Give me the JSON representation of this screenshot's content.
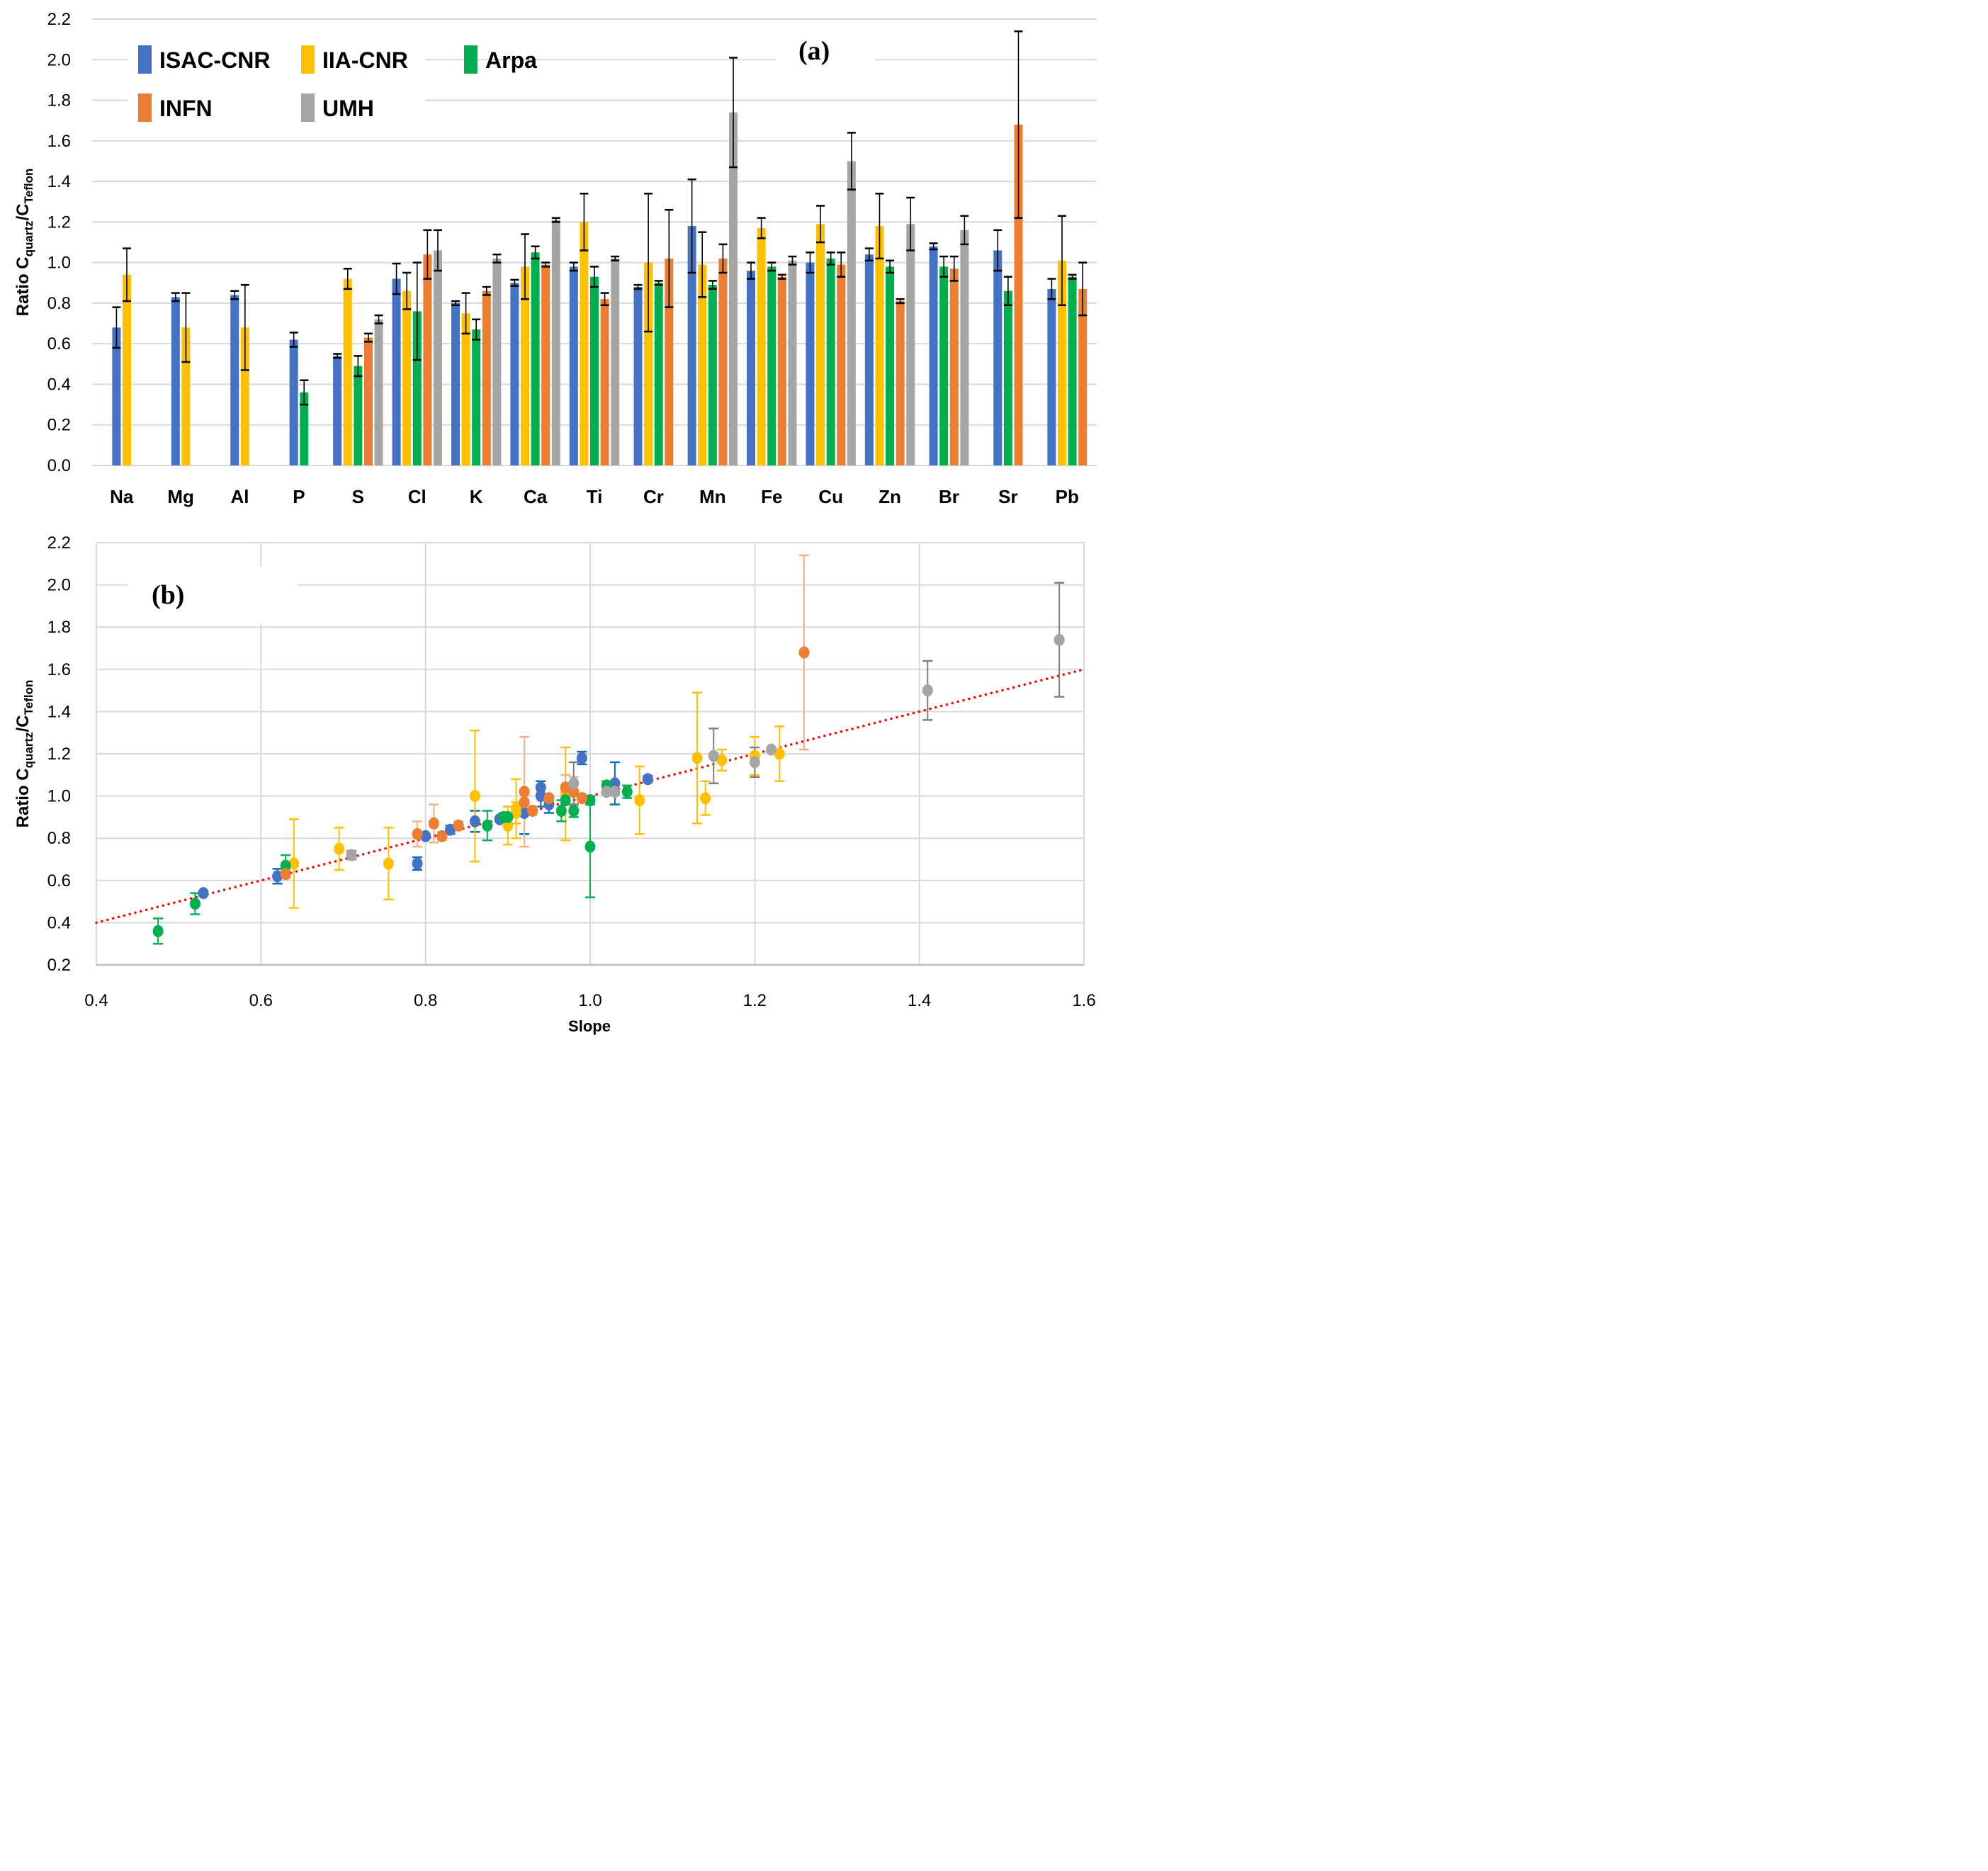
{
  "chart_data": [
    {
      "id": "panel-a",
      "type": "bar",
      "panel_label": "(a)",
      "title": "",
      "ylabel": "Ratio C",
      "ylabel_sub1": "quartz",
      "ylabel_mid": "/C",
      "ylabel_sub2": "Teflon",
      "xlabel": "",
      "ylim": [
        0,
        2.2
      ],
      "yticks": [
        0.0,
        0.2,
        0.4,
        0.6,
        0.8,
        1.0,
        1.2,
        1.4,
        1.6,
        1.8,
        2.0,
        2.2
      ],
      "ytick_labels": [
        "0.0",
        "0.2",
        "0.4",
        "0.6",
        "0.8",
        "1.0",
        "1.2",
        "1.4",
        "1.6",
        "1.8",
        "2.0",
        "2.2"
      ],
      "grid": true,
      "legend_position": "top-left",
      "categories": [
        "Na",
        "Mg",
        "Al",
        "P",
        "S",
        "Cl",
        "K",
        "Ca",
        "Ti",
        "Cr",
        "Mn",
        "Fe",
        "Cu",
        "Zn",
        "Br",
        "Sr",
        "Pb"
      ],
      "series": [
        {
          "name": "ISAC-CNR",
          "color": "#4472C4",
          "values": [
            0.68,
            0.83,
            0.84,
            0.62,
            0.54,
            0.92,
            0.8,
            0.9,
            0.98,
            0.88,
            1.18,
            0.96,
            1.0,
            1.04,
            1.08,
            1.06,
            0.87
          ],
          "errors": [
            0.1,
            0.02,
            0.02,
            0.035,
            0.01,
            0.075,
            0.01,
            0.015,
            0.02,
            0.01,
            0.23,
            0.04,
            0.05,
            0.03,
            0.015,
            0.1,
            0.05
          ]
        },
        {
          "name": "IIA-CNR",
          "color": "#FFC000",
          "values": [
            0.94,
            0.68,
            0.68,
            null,
            0.92,
            0.86,
            0.75,
            0.98,
            1.2,
            1.0,
            0.99,
            1.17,
            1.19,
            1.18,
            null,
            null,
            1.01
          ],
          "errors": [
            0.13,
            0.17,
            0.21,
            null,
            0.05,
            0.09,
            0.1,
            0.16,
            0.14,
            0.34,
            0.16,
            0.05,
            0.09,
            0.16,
            null,
            null,
            0.22
          ]
        },
        {
          "name": "Arpa",
          "color": "#00B050",
          "values": [
            null,
            null,
            null,
            0.36,
            0.49,
            0.76,
            0.67,
            1.05,
            0.93,
            0.9,
            0.89,
            0.98,
            1.02,
            0.98,
            0.98,
            0.86,
            0.93
          ],
          "errors": [
            null,
            null,
            null,
            0.06,
            0.05,
            0.24,
            0.05,
            0.03,
            0.05,
            0.01,
            0.02,
            0.02,
            0.03,
            0.03,
            0.05,
            0.07,
            0.01
          ]
        },
        {
          "name": "INFN",
          "color": "#ED7D31",
          "values": [
            null,
            null,
            null,
            null,
            0.63,
            1.04,
            0.86,
            0.99,
            0.82,
            1.02,
            1.02,
            0.93,
            0.99,
            0.81,
            0.97,
            1.68,
            0.87
          ],
          "errors": [
            null,
            null,
            null,
            null,
            0.02,
            0.12,
            0.02,
            0.01,
            0.03,
            0.24,
            0.07,
            0.01,
            0.06,
            0.01,
            0.06,
            0.46,
            0.13
          ]
        },
        {
          "name": "UMH",
          "color": "#A5A5A5",
          "values": [
            null,
            null,
            null,
            null,
            0.72,
            1.06,
            1.02,
            1.21,
            1.02,
            null,
            1.74,
            1.01,
            1.5,
            1.19,
            1.16,
            null,
            null
          ],
          "errors": [
            null,
            null,
            null,
            null,
            0.02,
            0.1,
            0.02,
            0.01,
            0.01,
            null,
            0.27,
            0.02,
            0.14,
            0.13,
            0.07,
            null,
            null
          ]
        }
      ]
    },
    {
      "id": "panel-b",
      "type": "scatter",
      "panel_label": "(b)",
      "title": "",
      "xlabel": "Slope",
      "ylabel": "Ratio C",
      "ylabel_sub1": "quartz",
      "ylabel_mid": "/C",
      "ylabel_sub2": "Teflon",
      "xlim": [
        0.4,
        1.6
      ],
      "ylim": [
        0.2,
        2.2
      ],
      "xticks": [
        0.4,
        0.6,
        0.8,
        1.0,
        1.2,
        1.4,
        1.6
      ],
      "xtick_labels": [
        "0.4",
        "0.6",
        "0.8",
        "1.0",
        "1.2",
        "1.4",
        "1.6"
      ],
      "yticks": [
        0.2,
        0.4,
        0.6,
        0.8,
        1.0,
        1.2,
        1.4,
        1.6,
        1.8,
        2.0,
        2.2
      ],
      "ytick_labels": [
        "0.2",
        "0.4",
        "0.6",
        "0.8",
        "1.0",
        "1.2",
        "1.4",
        "1.6",
        "1.8",
        "2.0",
        "2.2"
      ],
      "grid": true,
      "trendline": {
        "style": "dotted",
        "color": "#FF0000",
        "points": [
          [
            0.4,
            0.4
          ],
          [
            1.6,
            1.6
          ]
        ]
      },
      "series": [
        {
          "name": "ISAC-CNR",
          "color": "#4472C4",
          "errcolor": "#0070C0",
          "points": [
            [
              0.53,
              0.54,
              0.01
            ],
            [
              0.62,
              0.62,
              0.035
            ],
            [
              0.79,
              0.68,
              0.03
            ],
            [
              0.8,
              0.81,
              0.01
            ],
            [
              0.83,
              0.84,
              0.02
            ],
            [
              0.86,
              0.88,
              0.05
            ],
            [
              0.89,
              0.89,
              0.01
            ],
            [
              0.92,
              0.92,
              0.1
            ],
            [
              0.94,
              1.04,
              0.03
            ],
            [
              0.94,
              1.0,
              0.05
            ],
            [
              0.95,
              0.96,
              0.04
            ],
            [
              0.99,
              1.18,
              0.03
            ],
            [
              1.03,
              1.06,
              0.1
            ],
            [
              1.07,
              1.08,
              0.015
            ]
          ]
        },
        {
          "name": "IIA-CNR",
          "color": "#FFC000",
          "errcolor": "#FFC000",
          "points": [
            [
              0.64,
              0.68,
              0.21
            ],
            [
              0.695,
              0.75,
              0.1
            ],
            [
              0.755,
              0.68,
              0.17
            ],
            [
              0.86,
              1.0,
              0.31
            ],
            [
              0.9,
              0.86,
              0.09
            ],
            [
              0.91,
              0.94,
              0.14
            ],
            [
              0.91,
              0.92,
              0.05
            ],
            [
              0.97,
              1.01,
              0.22
            ],
            [
              1.06,
              0.98,
              0.16
            ],
            [
              1.13,
              1.18,
              0.31
            ],
            [
              1.14,
              0.99,
              0.08
            ],
            [
              1.16,
              1.17,
              0.05
            ],
            [
              1.2,
              1.19,
              0.09
            ],
            [
              1.23,
              1.2,
              0.13
            ]
          ]
        },
        {
          "name": "Arpa",
          "color": "#00B050",
          "errcolor": "#00B050",
          "points": [
            [
              0.475,
              0.36,
              0.06
            ],
            [
              0.52,
              0.49,
              0.05
            ],
            [
              0.63,
              0.67,
              0.05
            ],
            [
              0.875,
              0.86,
              0.07
            ],
            [
              0.895,
              0.9,
              0.02
            ],
            [
              0.9,
              0.9,
              0.01
            ],
            [
              0.965,
              0.93,
              0.05
            ],
            [
              0.97,
              0.98,
              0.02
            ],
            [
              0.98,
              0.93,
              0.03
            ],
            [
              1.0,
              0.98,
              0.02
            ],
            [
              1.0,
              0.76,
              0.24
            ],
            [
              1.02,
              1.05,
              0.02
            ],
            [
              1.045,
              1.02,
              0.03
            ]
          ]
        },
        {
          "name": "INFN",
          "color": "#ED7D31",
          "errcolor": "#F4B183",
          "points": [
            [
              0.63,
              0.63,
              0.02
            ],
            [
              0.79,
              0.82,
              0.06
            ],
            [
              0.81,
              0.87,
              0.09
            ],
            [
              0.82,
              0.81,
              0.02
            ],
            [
              0.84,
              0.86,
              0.02
            ],
            [
              0.92,
              1.02,
              0.26
            ],
            [
              0.92,
              0.97,
              0.06
            ],
            [
              0.93,
              0.93,
              0.02
            ],
            [
              0.95,
              0.99,
              0.01
            ],
            [
              0.97,
              1.04,
              0.06
            ],
            [
              0.98,
              1.02,
              0.07
            ],
            [
              0.99,
              0.99,
              0.02
            ],
            [
              1.26,
              1.68,
              0.46
            ]
          ]
        },
        {
          "name": "UMH",
          "color": "#A5A5A5",
          "errcolor": "#7F7F7F",
          "points": [
            [
              0.71,
              0.72,
              0.02
            ],
            [
              0.98,
              1.06,
              0.1
            ],
            [
              1.02,
              1.02,
              0.01
            ],
            [
              1.03,
              1.02,
              0.01
            ],
            [
              1.15,
              1.19,
              0.13
            ],
            [
              1.2,
              1.16,
              0.07
            ],
            [
              1.22,
              1.22,
              0.01
            ],
            [
              1.41,
              1.5,
              0.14
            ],
            [
              1.57,
              1.74,
              0.27
            ]
          ]
        }
      ]
    }
  ]
}
